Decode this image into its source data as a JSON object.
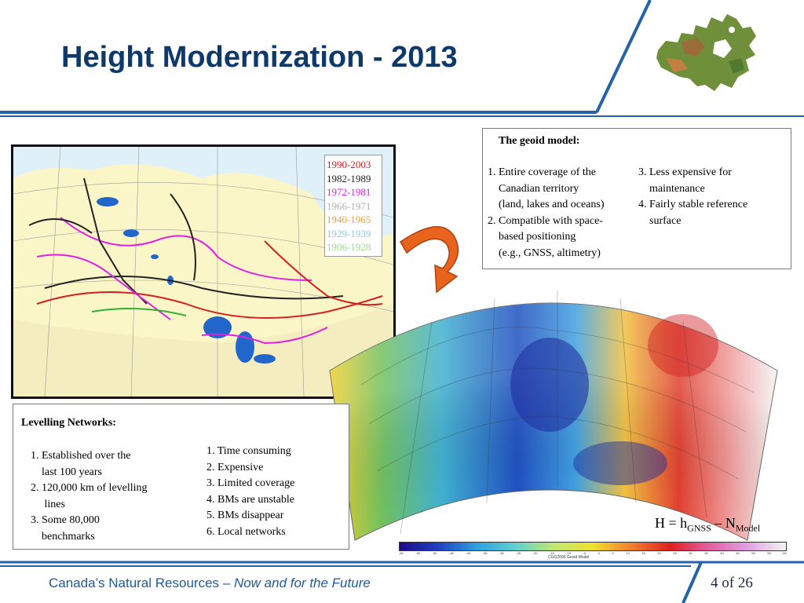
{
  "slide": {
    "title": "Height Modernization - 2013",
    "page_number": "4 of 26"
  },
  "footer": {
    "org": "Canada’s Natural Resources – ",
    "tagline": "Now and for the Future"
  },
  "map_legend": {
    "items": [
      {
        "label": "1990-2003",
        "color": "#d42020"
      },
      {
        "label": "1982-1989",
        "color": "#222222"
      },
      {
        "label": "1972-1981",
        "color": "#e020e0"
      },
      {
        "label": "1966-1971",
        "color": "#b0b0b0"
      },
      {
        "label": "1940-1965",
        "color": "#f0a030"
      },
      {
        "label": "1929-1939",
        "color": "#90c8e8"
      },
      {
        "label": "1906-1928",
        "color": "#a0d890"
      }
    ]
  },
  "geoid_box": {
    "heading": "The geoid model:",
    "left_lines": [
      "1. Entire coverage of the",
      "    Canadian territory",
      "    (land, lakes and oceans)",
      "2. Compatible with space-",
      "    based positioning",
      "    (e.g., GNSS, altimetry)"
    ],
    "right_lines": [
      "3. Less expensive for",
      "    maintenance",
      "4. Fairly stable reference",
      "    surface"
    ]
  },
  "levelling_box": {
    "heading": "Levelling Networks:",
    "left_lines": [
      "1. Established over the",
      "    last 100 years",
      "2. 120,000 km of levelling",
      "     lines",
      "3. Some 80,000",
      "    benchmarks"
    ],
    "right_lines": [
      "1. Time consuming",
      "2. Expensive",
      "3. Limited coverage",
      "4. BMs are unstable",
      "5. BMs disappear",
      "6. Local networks"
    ]
  },
  "formula": {
    "h_prefix": "H = h",
    "sub_gnss": "GNSS",
    "minus_n": " – N",
    "sub_model": "Model"
  },
  "colorbar": {
    "caption": "CGG2005 Geoid Model",
    "ticks": [
      "-60",
      "-55",
      "-50",
      "-45",
      "-40",
      "-35",
      "-30",
      "-25",
      "-20",
      "-15",
      "-10",
      "-5",
      "0",
      "5",
      "10",
      "15",
      "20",
      "25",
      "30",
      "35",
      "40",
      "45",
      "50",
      "55",
      "60"
    ]
  },
  "colors": {
    "title": "#0e3a6b",
    "band": "#1f5aa0",
    "accent_arrow": "#e8641c"
  }
}
